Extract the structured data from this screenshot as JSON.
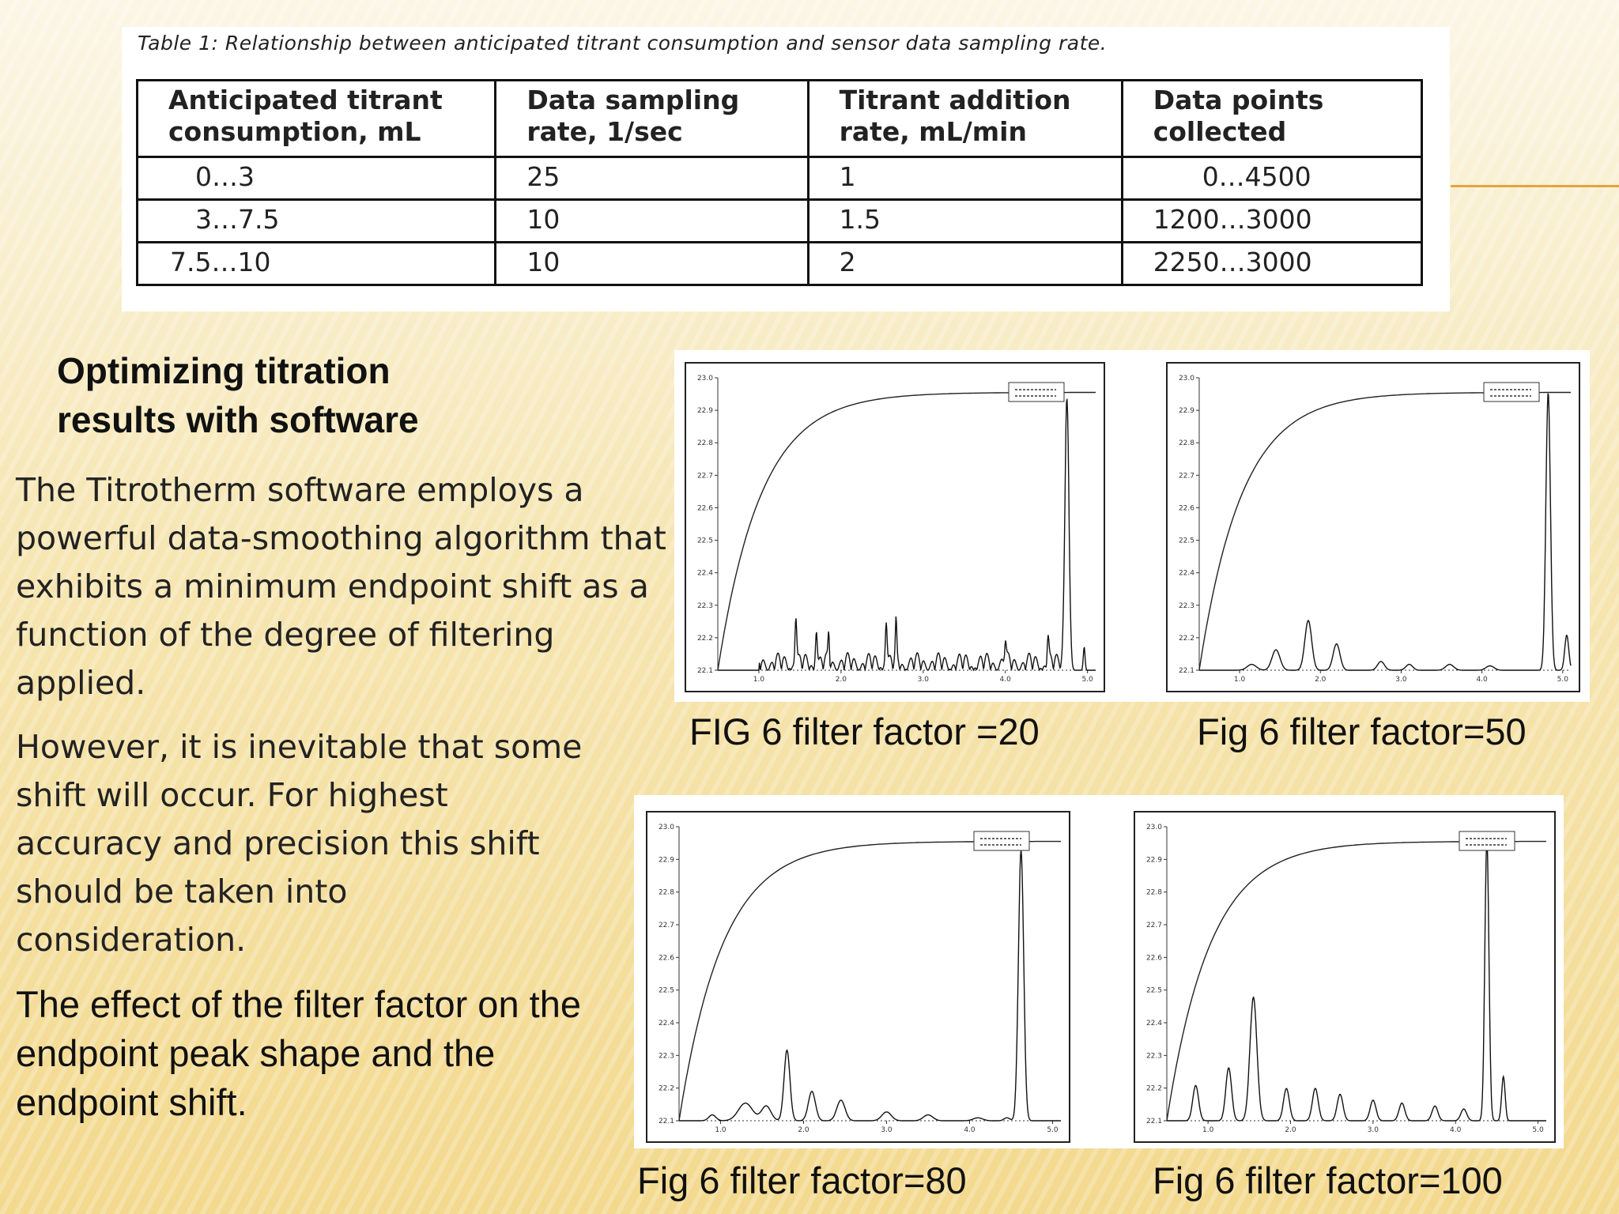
{
  "table": {
    "caption": "Table 1: Relationship between anticipated titrant consumption and sensor data sampling rate.",
    "headers": [
      "Anticipated titrant\nconsumption, mL",
      "Data sampling\nrate, 1/sec",
      "Titrant addition\nrate, mL/min",
      "Data points\ncollected"
    ],
    "rows": [
      [
        "0…3",
        "25",
        "1",
        "0…4500"
      ],
      [
        "3…7.5",
        "10",
        "1.5",
        "1200…3000"
      ],
      [
        "7.5…10",
        "10",
        "2",
        "2250…3000"
      ]
    ]
  },
  "section_heading_line1": "Optimizing titration",
  "section_heading_line2": "results with software",
  "paragraph1": "The Titrotherm software employs a powerful data-smoothing algorithm that exhibits a minimum endpoint shift as a function of the degree of filtering applied.",
  "paragraph2": "However, it is inevitable that some shift will occur. For highest accuracy and precision this shift should be taken into consideration.",
  "paragraph3": "The effect of the filter factor on the endpoint peak shape and the endpoint shift.",
  "accent_color": "#e8a33a",
  "chart_data": [
    {
      "type": "line",
      "caption": "FIG 6 filter factor =20",
      "filter_factor": 20,
      "xlim": [
        0.5,
        5.1
      ],
      "ylim": [
        22.1,
        23.0
      ],
      "x_ticks": [
        "1.0",
        "2.0",
        "3.0",
        "4.0",
        "5.0"
      ],
      "y_ticks": [
        "22.1",
        "22.2",
        "22.3",
        "22.4",
        "22.5",
        "22.6",
        "22.7",
        "22.8",
        "22.9",
        "23.0"
      ],
      "series": [
        {
          "values": "titration curve"
        },
        {
          "values": "derivative signal"
        }
      ]
    },
    {
      "type": "line",
      "caption": "Fig 6 filter factor=50",
      "filter_factor": 50,
      "xlim": [
        0.5,
        5.1
      ],
      "ylim": [
        22.1,
        23.0
      ],
      "x_ticks": [
        "1.0",
        "2.0",
        "3.0",
        "4.0",
        "5.0"
      ],
      "y_ticks": [
        "22.1",
        "22.2",
        "22.3",
        "22.4",
        "22.5",
        "22.6",
        "22.7",
        "22.8",
        "22.9",
        "23.0"
      ],
      "series": [
        {
          "values": "titration curve"
        },
        {
          "values": "derivative signal"
        }
      ]
    },
    {
      "type": "line",
      "caption": "Fig 6 filter factor=80",
      "filter_factor": 80,
      "xlim": [
        0.5,
        5.1
      ],
      "ylim": [
        22.1,
        23.0
      ],
      "x_ticks": [
        "1.0",
        "2.0",
        "3.0",
        "4.0",
        "5.0"
      ],
      "y_ticks": [
        "22.1",
        "22.2",
        "22.3",
        "22.4",
        "22.5",
        "22.6",
        "22.7",
        "22.8",
        "22.9",
        "23.0"
      ],
      "series": [
        {
          "values": "titration curve"
        },
        {
          "values": "derivative signal"
        }
      ]
    },
    {
      "type": "line",
      "caption": "Fig 6 filter factor=100",
      "filter_factor": 100,
      "xlim": [
        0.5,
        5.1
      ],
      "ylim": [
        22.1,
        23.0
      ],
      "x_ticks": [
        "1.0",
        "2.0",
        "3.0",
        "4.0",
        "5.0"
      ],
      "y_ticks": [
        "22.1",
        "22.2",
        "22.3",
        "22.4",
        "22.5",
        "22.6",
        "22.7",
        "22.8",
        "22.9",
        "23.0"
      ],
      "series": [
        {
          "values": "titration curve"
        },
        {
          "values": "derivative signal"
        }
      ]
    }
  ]
}
